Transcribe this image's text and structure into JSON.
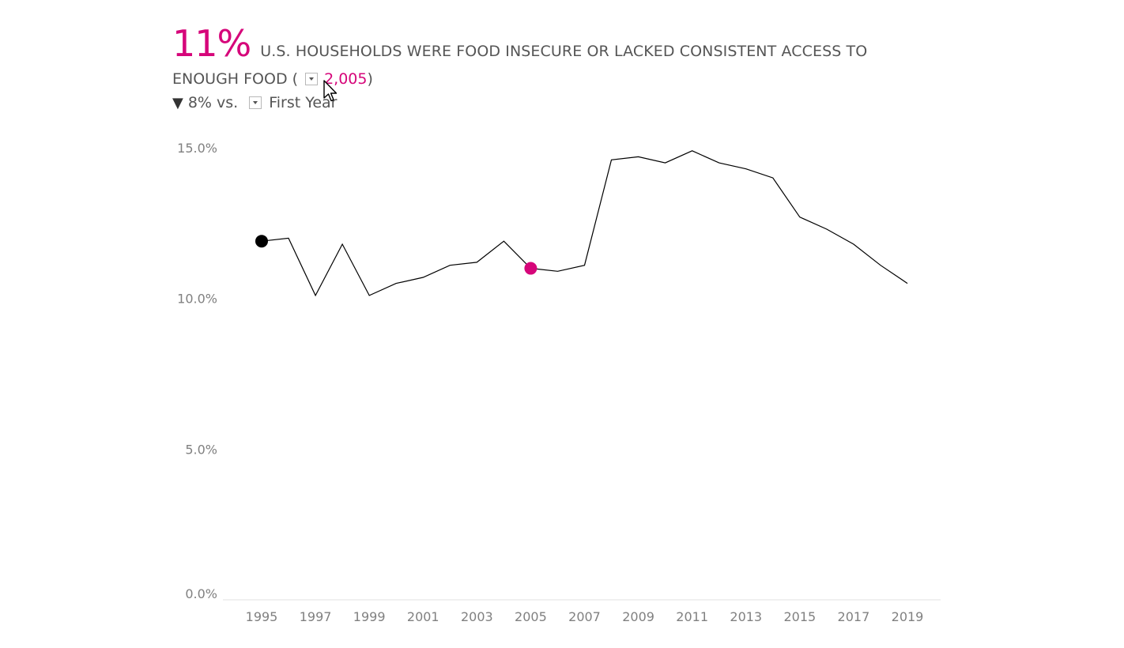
{
  "header": {
    "big_value": "11%",
    "title": "U.S. HOUSEHOLDS WERE FOOD INSECURE OR LACKED CONSISTENT ACCESS TO",
    "title_cont": "ENOUGH FOOD (",
    "selected_year": "2,005",
    "close_paren": ")",
    "change_arrow": "▼",
    "change_text": "8% vs.",
    "compare_option": "First Year"
  },
  "colors": {
    "accent": "#d6067a",
    "line": "#000000",
    "first_point": "#000000",
    "axis_text": "#808080"
  },
  "icons": {
    "year_dropdown": "chevron-down-icon",
    "compare_dropdown": "chevron-down-icon",
    "cursor": "mouse-pointer-icon",
    "change_indicator": "triangle-down-icon"
  },
  "chart_data": {
    "type": "line",
    "title": "",
    "xlabel": "",
    "ylabel": "",
    "x": [
      1995,
      1996,
      1997,
      1998,
      1999,
      2000,
      2001,
      2002,
      2003,
      2004,
      2005,
      2006,
      2007,
      2008,
      2009,
      2010,
      2011,
      2012,
      2013,
      2014,
      2015,
      2016,
      2017,
      2018,
      2019
    ],
    "series": [
      {
        "values": [
          11.9,
          12.0,
          10.1,
          11.8,
          10.1,
          10.5,
          10.7,
          11.1,
          11.2,
          11.9,
          11.0,
          10.9,
          11.1,
          14.6,
          14.7,
          14.5,
          14.9,
          14.5,
          14.3,
          14.0,
          12.7,
          12.3,
          11.8,
          11.1,
          10.5
        ]
      }
    ],
    "highlight": [
      {
        "x": 1995,
        "y": 11.9,
        "color": "#000000"
      },
      {
        "x": 2005,
        "y": 11.0,
        "color": "#d6067a"
      }
    ],
    "y_ticks": [
      "0.0%",
      "5.0%",
      "10.0%",
      "15.0%"
    ],
    "x_ticks": [
      "1995",
      "1997",
      "1999",
      "2001",
      "2003",
      "2005",
      "2007",
      "2009",
      "2011",
      "2013",
      "2015",
      "2017",
      "2019"
    ],
    "ylim": [
      0,
      15
    ],
    "xlim": [
      1995,
      2019
    ],
    "grid": false,
    "legend": "none"
  }
}
